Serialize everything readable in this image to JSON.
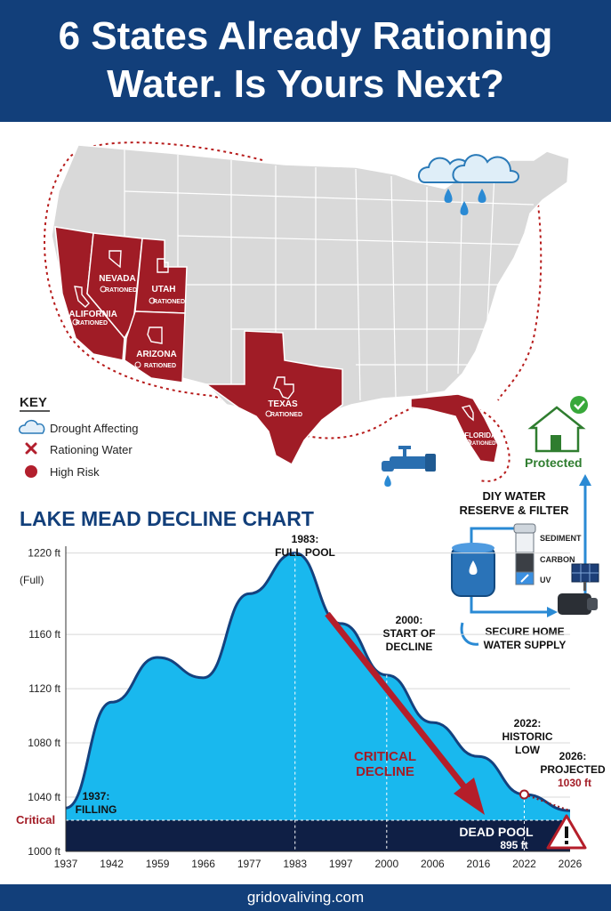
{
  "title": "6 States Already Rationing Water. Is Yours Next?",
  "footer": "gridovaliving.com",
  "map": {
    "states": [
      {
        "name": "NEVADA",
        "status": "RATIONED"
      },
      {
        "name": "UTAH",
        "status": "RATIONED"
      },
      {
        "name": "CALIFORNIA",
        "status": "RATIONED"
      },
      {
        "name": "ARIZONA",
        "status": "RATIONED"
      },
      {
        "name": "TEXAS",
        "status": "RATIONED"
      },
      {
        "name": "FLORIDA",
        "status": "RATIONED"
      }
    ],
    "rationed_color": "#a01c26",
    "other_color": "#d9d9d9"
  },
  "key": {
    "title": "KEY",
    "items": [
      {
        "label": "Drought Affecting",
        "icon": "cloud-icon"
      },
      {
        "label": "Rationing Water",
        "icon": "x-mark-icon"
      },
      {
        "label": "High Risk",
        "icon": "red-dot-icon"
      }
    ]
  },
  "protected_label": "Protected",
  "diy": {
    "title_line1": "DIY WATER",
    "title_line2": "RESERVE & FILTER",
    "filter_labels": [
      "SEDIMENT",
      "CARBON",
      "UV"
    ],
    "secure_line1": "SECURE HOME",
    "secure_line2": "WATER SUPPLY"
  },
  "chart_data": {
    "type": "area",
    "title": "LAKE MEAD DECLINE CHART",
    "x": [
      1937,
      1942,
      1959,
      1966,
      1977,
      1983,
      1997,
      2000,
      2006,
      2016,
      2022,
      2026
    ],
    "x_tick_labels": [
      "1937",
      "1942",
      "1959",
      "1966",
      "1977",
      "1983",
      "1997",
      "2000",
      "2006",
      "2016",
      "2022",
      "2026"
    ],
    "y_ticks": [
      1000,
      1040,
      1080,
      1120,
      1160,
      1220
    ],
    "y_tick_labels": [
      "1000 ft",
      "1040 ft",
      "1080 ft",
      "1120 ft",
      "1160 ft",
      "1220 ft"
    ],
    "y_top_sublabel": "(Full)",
    "ylim": [
      1000,
      1225
    ],
    "series": [
      {
        "values": [
          1032,
          1110,
          1143,
          1128,
          1190,
          1220,
          1168,
          1130,
          1095,
          1070,
          1042,
          1030
        ]
      }
    ],
    "grid": true,
    "critical_label": "Critical",
    "critical_level": 1023,
    "dead_pool": {
      "label": "DEAD POOL",
      "value_label": "895 ft"
    },
    "arrow_label_line1": "CRITICAL",
    "arrow_label_line2": "DECLINE",
    "annotations": [
      {
        "id": "filling",
        "line1": "1937:",
        "line2": "FILLING"
      },
      {
        "id": "full",
        "line1": "1983:",
        "line2": "FULL POOL"
      },
      {
        "id": "start",
        "line1": "2000:",
        "line2": "START OF",
        "line3": "DECLINE"
      },
      {
        "id": "low",
        "line1": "2022:",
        "line2": "HISTORIC",
        "line3": "LOW"
      },
      {
        "id": "proj",
        "line1": "2026:",
        "line2": "PROJECTED",
        "line3": "1030 ft"
      }
    ]
  }
}
